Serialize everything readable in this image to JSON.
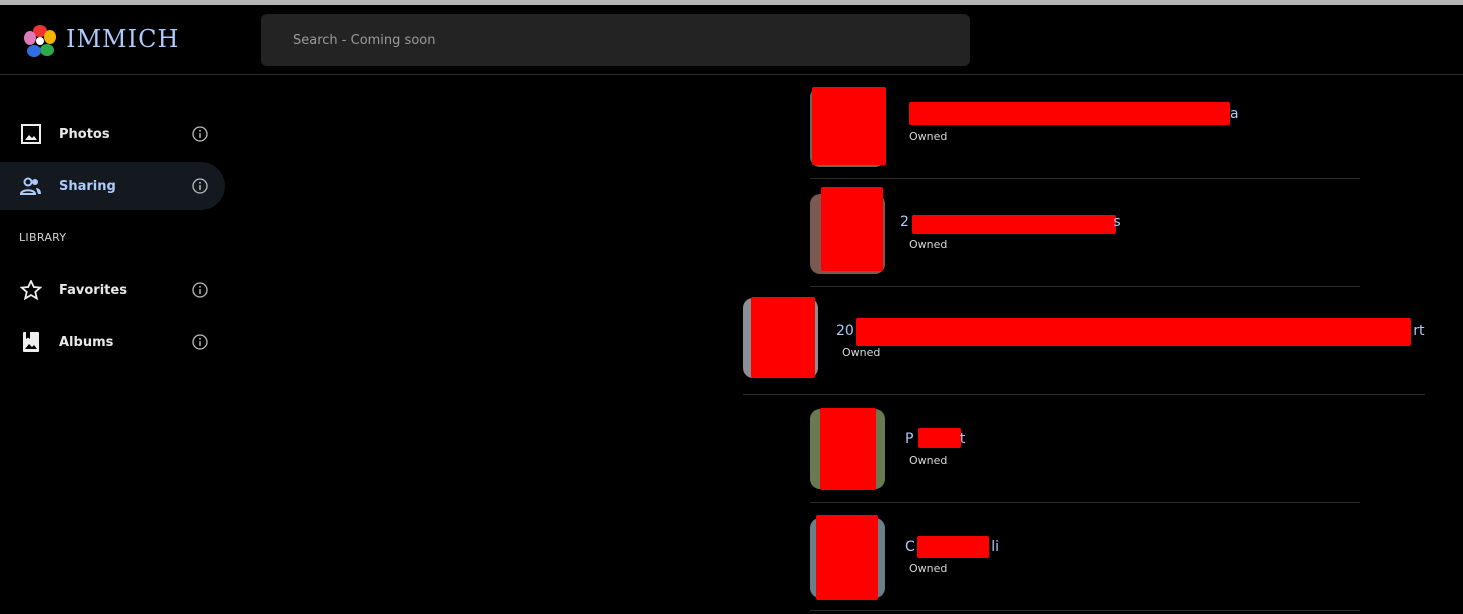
{
  "header": {
    "brand": "IMMICH",
    "search_placeholder": "Search - Coming soon"
  },
  "sidebar": {
    "items": [
      {
        "label": "Photos",
        "icon": "photo-icon"
      },
      {
        "label": "Sharing",
        "icon": "people-icon",
        "active": true
      }
    ],
    "section_label": "LIBRARY",
    "library_items": [
      {
        "label": "Favorites",
        "icon": "star-icon"
      },
      {
        "label": "Albums",
        "icon": "album-icon"
      }
    ]
  },
  "albums": [
    {
      "title_visible": "a",
      "subtitle": "Owned"
    },
    {
      "title_visible": "2 s",
      "subtitle": "Owned"
    },
    {
      "title_visible": "20 rt",
      "subtitle": "Owned"
    },
    {
      "title_visible": "P t",
      "subtitle": "Owned"
    },
    {
      "title_visible": "C li",
      "subtitle": "Owned"
    }
  ],
  "colors": {
    "accent": "#adcbfa",
    "redaction": "#ff0000",
    "active_bg": "#141920"
  }
}
